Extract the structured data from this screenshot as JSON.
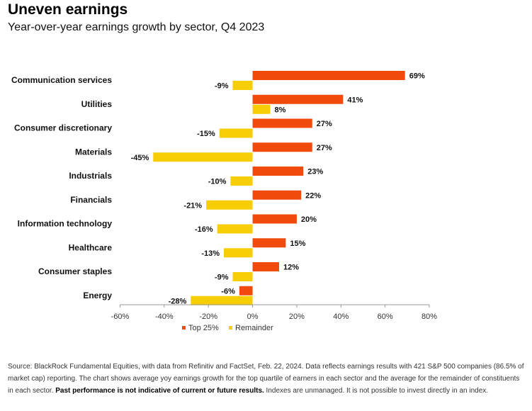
{
  "header": {
    "title": "Uneven earnings",
    "subtitle": "Year-over-year earnings growth by sector, Q4 2023"
  },
  "colors": {
    "top25": "#F04A0C",
    "remainder": "#F7CD05",
    "axis": "#999999"
  },
  "chart_data": {
    "type": "bar",
    "orientation": "horizontal",
    "title": "",
    "xlabel": "",
    "ylabel": "",
    "categories": [
      "Communication services",
      "Utilities",
      "Consumer discretionary",
      "Materials",
      "Industrials",
      "Financials",
      "Information technology",
      "Healthcare",
      "Consumer staples",
      "Energy"
    ],
    "series": [
      {
        "name": "Top 25%",
        "values": [
          69,
          41,
          27,
          27,
          23,
          22,
          20,
          15,
          12,
          -6
        ]
      },
      {
        "name": "Remainder",
        "values": [
          -9,
          8,
          -15,
          -45,
          -10,
          -21,
          -16,
          -13,
          -9,
          -28
        ]
      }
    ],
    "value_labels": {
      "top25": [
        "69%",
        "41%",
        "27%",
        "27%",
        "23%",
        "22%",
        "20%",
        "15%",
        "12%",
        "-6%"
      ],
      "remainder": [
        "-9%",
        "8%",
        "-15%",
        "-45%",
        "-10%",
        "-21%",
        "-16%",
        "-13%",
        "-9%",
        "-28%"
      ]
    },
    "xlim": [
      -60,
      80
    ],
    "xticks": [
      -60,
      -40,
      -20,
      0,
      20,
      40,
      60,
      80
    ],
    "xtick_labels": [
      "-60%",
      "-40%",
      "-20%",
      "0%",
      "20%",
      "40%",
      "60%",
      "80%"
    ],
    "grid": false,
    "legend": {
      "position": "bottom",
      "entries": [
        "Top 25%",
        "Remainder"
      ]
    }
  },
  "source": {
    "text_1": "Source: BlackRock Fundamental Equities, with data from Refinitiv and FactSet, Feb. 22, 2024. Data reflects earnings results with 421 S&P 500 companies (86.5% of market cap) reporting. The chart shows average yoy earnings growth for the top quartile of earners in each sector and the average for the remainder of constituents in each sector. ",
    "disclaimer": "Past performance is not indicative of current or future results.",
    "text_2": " Indexes are unmanaged. It is not possible to invest directly in an index."
  }
}
